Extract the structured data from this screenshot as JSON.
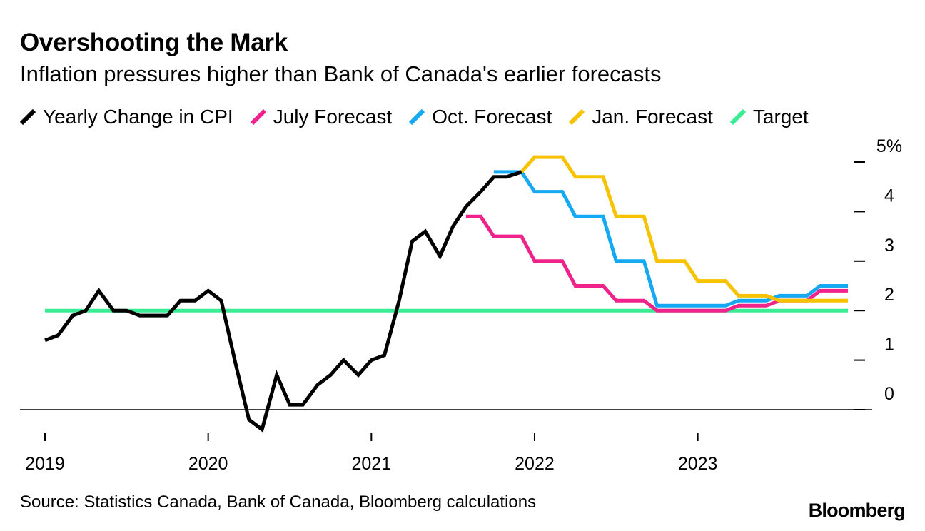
{
  "header": {
    "title": "Overshooting the Mark",
    "subtitle": "Inflation pressures higher than Bank of Canada's earlier forecasts"
  },
  "footer": {
    "source": "Source: Statistics Canada, Bank of Canada, Bloomberg calculations",
    "brand": "Bloomberg"
  },
  "chart_data": {
    "type": "line",
    "title": "Overshooting the Mark",
    "subtitle": "Inflation pressures higher than Bank of Canada's earlier forecasts",
    "xlabel": "",
    "ylabel": "",
    "xlim": [
      2019.0,
      2023.92
    ],
    "ylim": [
      0,
      5
    ],
    "y_ticks": [
      0,
      1,
      2,
      3,
      4,
      5
    ],
    "y_tick_labels": [
      "0",
      "1",
      "2",
      "3",
      "4",
      "5%"
    ],
    "y_axis_position": "right",
    "x_ticks": [
      2019,
      2020,
      2021,
      2022,
      2023
    ],
    "x_tick_labels": [
      "2019",
      "2020",
      "2021",
      "2022",
      "2023"
    ],
    "legend_position": "top",
    "series": [
      {
        "name": "Yearly Change in CPI",
        "color": "#000000",
        "points": [
          [
            2019.0,
            1.4
          ],
          [
            2019.08,
            1.5
          ],
          [
            2019.17,
            1.9
          ],
          [
            2019.25,
            2.0
          ],
          [
            2019.33,
            2.4
          ],
          [
            2019.42,
            2.0
          ],
          [
            2019.5,
            2.0
          ],
          [
            2019.58,
            1.9
          ],
          [
            2019.67,
            1.9
          ],
          [
            2019.75,
            1.9
          ],
          [
            2019.83,
            2.2
          ],
          [
            2019.92,
            2.2
          ],
          [
            2020.0,
            2.4
          ],
          [
            2020.08,
            2.2
          ],
          [
            2020.17,
            0.9
          ],
          [
            2020.25,
            -0.2
          ],
          [
            2020.33,
            -0.4
          ],
          [
            2020.42,
            0.7
          ],
          [
            2020.5,
            0.1
          ],
          [
            2020.58,
            0.1
          ],
          [
            2020.67,
            0.5
          ],
          [
            2020.75,
            0.7
          ],
          [
            2020.83,
            1.0
          ],
          [
            2020.92,
            0.7
          ],
          [
            2021.0,
            1.0
          ],
          [
            2021.08,
            1.1
          ],
          [
            2021.17,
            2.2
          ],
          [
            2021.25,
            3.4
          ],
          [
            2021.33,
            3.6
          ],
          [
            2021.42,
            3.1
          ],
          [
            2021.5,
            3.7
          ],
          [
            2021.58,
            4.1
          ],
          [
            2021.67,
            4.4
          ],
          [
            2021.75,
            4.7
          ],
          [
            2021.83,
            4.7
          ],
          [
            2021.92,
            4.8
          ]
        ]
      },
      {
        "name": "July Forecast",
        "color": "#f0238c",
        "points": [
          [
            2021.58,
            3.9
          ],
          [
            2021.67,
            3.9
          ],
          [
            2021.75,
            3.5
          ],
          [
            2021.83,
            3.5
          ],
          [
            2021.92,
            3.5
          ],
          [
            2022.0,
            3.0
          ],
          [
            2022.08,
            3.0
          ],
          [
            2022.17,
            3.0
          ],
          [
            2022.25,
            2.5
          ],
          [
            2022.33,
            2.5
          ],
          [
            2022.42,
            2.5
          ],
          [
            2022.5,
            2.2
          ],
          [
            2022.58,
            2.2
          ],
          [
            2022.67,
            2.2
          ],
          [
            2022.75,
            2.0
          ],
          [
            2022.83,
            2.0
          ],
          [
            2022.92,
            2.0
          ],
          [
            2023.0,
            2.0
          ],
          [
            2023.08,
            2.0
          ],
          [
            2023.17,
            2.0
          ],
          [
            2023.25,
            2.1
          ],
          [
            2023.33,
            2.1
          ],
          [
            2023.42,
            2.1
          ],
          [
            2023.5,
            2.2
          ],
          [
            2023.58,
            2.2
          ],
          [
            2023.67,
            2.2
          ],
          [
            2023.75,
            2.4
          ],
          [
            2023.83,
            2.4
          ],
          [
            2023.92,
            2.4
          ]
        ]
      },
      {
        "name": "Oct. Forecast",
        "color": "#15a9f3",
        "points": [
          [
            2021.75,
            4.8
          ],
          [
            2021.83,
            4.8
          ],
          [
            2021.92,
            4.8
          ],
          [
            2022.0,
            4.4
          ],
          [
            2022.08,
            4.4
          ],
          [
            2022.17,
            4.4
          ],
          [
            2022.25,
            3.9
          ],
          [
            2022.33,
            3.9
          ],
          [
            2022.42,
            3.9
          ],
          [
            2022.5,
            3.0
          ],
          [
            2022.58,
            3.0
          ],
          [
            2022.67,
            3.0
          ],
          [
            2022.75,
            2.1
          ],
          [
            2022.83,
            2.1
          ],
          [
            2022.92,
            2.1
          ],
          [
            2023.0,
            2.1
          ],
          [
            2023.08,
            2.1
          ],
          [
            2023.17,
            2.1
          ],
          [
            2023.25,
            2.2
          ],
          [
            2023.33,
            2.2
          ],
          [
            2023.42,
            2.2
          ],
          [
            2023.5,
            2.3
          ],
          [
            2023.58,
            2.3
          ],
          [
            2023.67,
            2.3
          ],
          [
            2023.75,
            2.5
          ],
          [
            2023.83,
            2.5
          ],
          [
            2023.92,
            2.5
          ]
        ]
      },
      {
        "name": "Jan. Forecast",
        "color": "#f7c300",
        "points": [
          [
            2021.92,
            4.8
          ],
          [
            2022.0,
            5.1
          ],
          [
            2022.08,
            5.1
          ],
          [
            2022.17,
            5.1
          ],
          [
            2022.25,
            4.7
          ],
          [
            2022.33,
            4.7
          ],
          [
            2022.42,
            4.7
          ],
          [
            2022.5,
            3.9
          ],
          [
            2022.58,
            3.9
          ],
          [
            2022.67,
            3.9
          ],
          [
            2022.75,
            3.0
          ],
          [
            2022.83,
            3.0
          ],
          [
            2022.92,
            3.0
          ],
          [
            2023.0,
            2.6
          ],
          [
            2023.08,
            2.6
          ],
          [
            2023.17,
            2.6
          ],
          [
            2023.25,
            2.3
          ],
          [
            2023.33,
            2.3
          ],
          [
            2023.42,
            2.3
          ],
          [
            2023.5,
            2.2
          ],
          [
            2023.58,
            2.2
          ],
          [
            2023.67,
            2.2
          ],
          [
            2023.75,
            2.2
          ],
          [
            2023.83,
            2.2
          ],
          [
            2023.92,
            2.2
          ]
        ]
      },
      {
        "name": "Target",
        "color": "#3cec94",
        "points": [
          [
            2019.0,
            2.0
          ],
          [
            2023.92,
            2.0
          ]
        ]
      }
    ]
  }
}
